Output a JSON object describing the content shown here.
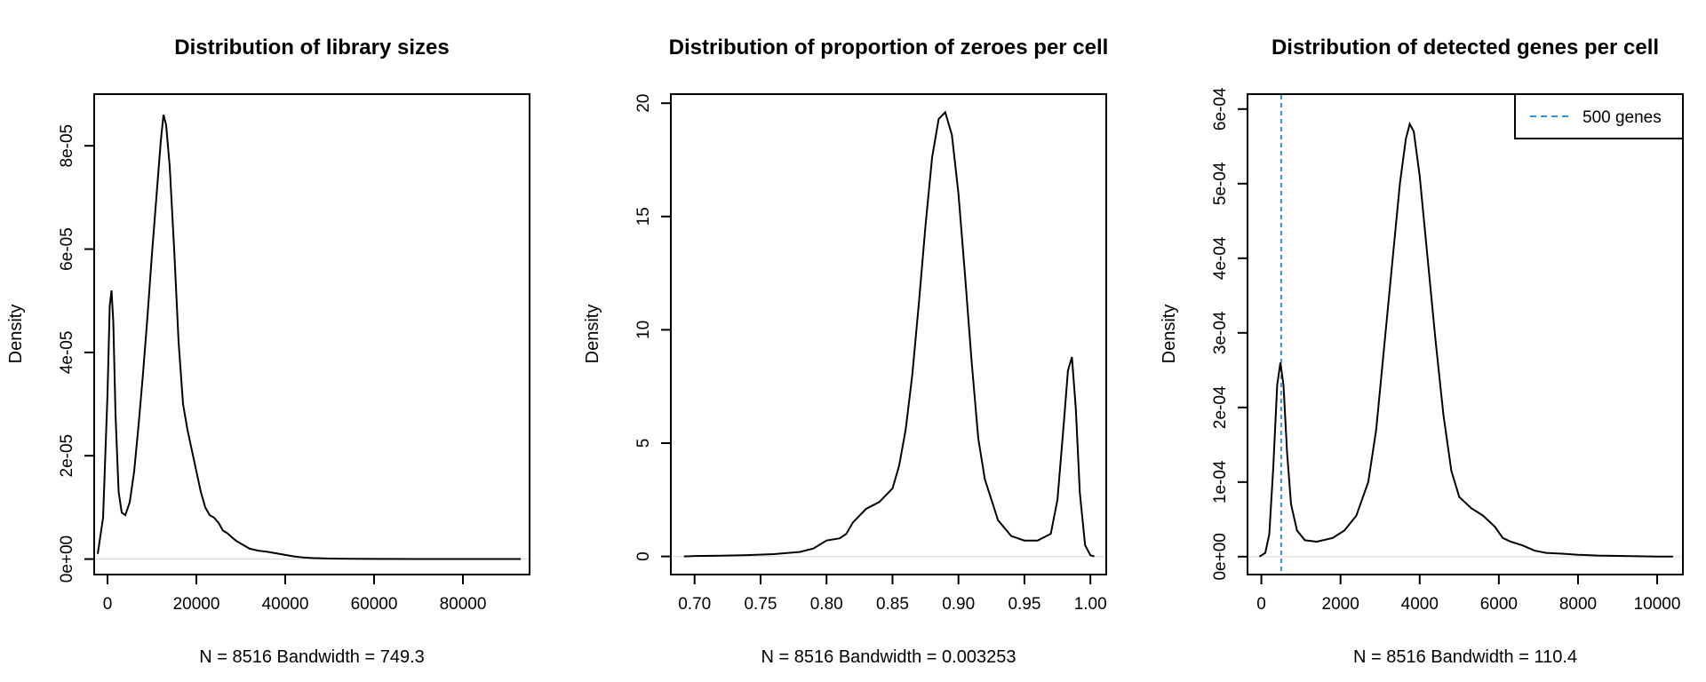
{
  "chart_data": [
    {
      "type": "line",
      "title": "Distribution of library sizes",
      "xlabel": "N = 8516   Bandwidth = 749.3",
      "ylabel": "Density",
      "xlim": [
        -3000,
        95000
      ],
      "ylim": [
        -3e-06,
        9e-05
      ],
      "xticks": [
        0,
        20000,
        40000,
        60000,
        80000
      ],
      "xtick_labels": [
        "0",
        "20000",
        "40000",
        "60000",
        "80000"
      ],
      "yticks": [
        0,
        2e-05,
        4e-05,
        6e-05,
        8e-05
      ],
      "ytick_labels": [
        "0e+00",
        "2e-05",
        "4e-05",
        "6e-05",
        "8e-05"
      ],
      "series": [
        {
          "name": "density",
          "color": "#000000",
          "x": [
            -2200,
            -1000,
            0,
            500,
            900,
            1300,
            1800,
            2500,
            3200,
            4000,
            5000,
            6000,
            7000,
            8000,
            9000,
            10000,
            11000,
            12000,
            12600,
            13200,
            14000,
            15000,
            16000,
            17000,
            18000,
            19000,
            20000,
            21000,
            22000,
            23000,
            24000,
            25000,
            26000,
            27000,
            28000,
            29000,
            30000,
            32000,
            34000,
            36000,
            38000,
            40000,
            42000,
            44000,
            46000,
            50000,
            55000,
            60000,
            70000,
            80000,
            93000
          ],
          "y": [
            1e-06,
            8e-06,
            3.2e-05,
            4.9e-05,
            5.2e-05,
            4.6e-05,
            2.8e-05,
            1.3e-05,
            9e-06,
            8.5e-06,
            1.1e-05,
            1.7e-05,
            2.6e-05,
            3.6e-05,
            4.7e-05,
            5.9e-05,
            7e-05,
            8.1e-05,
            8.6e-05,
            8.4e-05,
            7.6e-05,
            6e-05,
            4.2e-05,
            3e-05,
            2.5e-05,
            2.1e-05,
            1.7e-05,
            1.3e-05,
            1e-05,
            8.5e-06,
            8e-06,
            7e-06,
            5.5e-06,
            5e-06,
            4.2e-06,
            3.5e-06,
            3e-06,
            2e-06,
            1.6e-06,
            1.4e-06,
            1.1e-06,
            8e-07,
            5e-07,
            3e-07,
            2e-07,
            1e-07,
            5e-08,
            2e-08,
            1e-08,
            0,
            0
          ]
        }
      ]
    },
    {
      "type": "line",
      "title": "Distribution of proportion of zeroes per cell",
      "xlabel": "N = 8516   Bandwidth = 0.003253",
      "ylabel": "Density",
      "xlim": [
        0.682,
        1.012
      ],
      "ylim": [
        -0.8,
        20.4
      ],
      "xticks": [
        0.7,
        0.75,
        0.8,
        0.85,
        0.9,
        0.95,
        1.0
      ],
      "xtick_labels": [
        "0.70",
        "0.75",
        "0.80",
        "0.85",
        "0.90",
        "0.95",
        "1.00"
      ],
      "yticks": [
        0,
        5,
        10,
        15,
        20
      ],
      "ytick_labels": [
        "0",
        "5",
        "10",
        "15",
        "20"
      ],
      "series": [
        {
          "name": "density",
          "color": "#000000",
          "x": [
            0.692,
            0.7,
            0.72,
            0.74,
            0.76,
            0.78,
            0.79,
            0.8,
            0.81,
            0.815,
            0.82,
            0.83,
            0.84,
            0.85,
            0.855,
            0.86,
            0.865,
            0.87,
            0.875,
            0.88,
            0.885,
            0.89,
            0.895,
            0.9,
            0.905,
            0.91,
            0.915,
            0.92,
            0.93,
            0.94,
            0.95,
            0.96,
            0.97,
            0.975,
            0.98,
            0.983,
            0.986,
            0.989,
            0.992,
            0.996,
            1.0,
            1.003
          ],
          "y": [
            0,
            0.02,
            0.03,
            0.06,
            0.1,
            0.2,
            0.35,
            0.7,
            0.8,
            1.0,
            1.5,
            2.1,
            2.4,
            3.0,
            4.0,
            5.6,
            8.0,
            11.2,
            14.6,
            17.6,
            19.3,
            19.6,
            18.6,
            16.0,
            12.4,
            8.6,
            5.2,
            3.4,
            1.6,
            0.9,
            0.7,
            0.7,
            1.0,
            2.5,
            6.0,
            8.2,
            8.8,
            6.5,
            2.8,
            0.5,
            0.05,
            0
          ]
        }
      ]
    },
    {
      "type": "line",
      "title": "Distribution of detected genes per cell",
      "xlabel": "N = 8516   Bandwidth = 110.4",
      "ylabel": "Density",
      "xlim": [
        -350,
        10650
      ],
      "ylim": [
        -2.4e-05,
        0.00062
      ],
      "xticks": [
        0,
        2000,
        4000,
        6000,
        8000,
        10000
      ],
      "xtick_labels": [
        "0",
        "2000",
        "4000",
        "6000",
        "8000",
        "10000"
      ],
      "yticks": [
        0,
        0.0001,
        0.0002,
        0.0003,
        0.0004,
        0.0005,
        0.0006
      ],
      "ytick_labels": [
        "0e+00",
        "1e-04",
        "2e-04",
        "3e-04",
        "4e-04",
        "5e-04",
        "6e-04"
      ],
      "vline": {
        "x": 500,
        "label": "500 genes",
        "color": "#3A8FDB"
      },
      "legend_position": "top-right",
      "series": [
        {
          "name": "density",
          "color": "#000000",
          "x": [
            -50,
            100,
            200,
            300,
            400,
            480,
            560,
            650,
            750,
            900,
            1100,
            1400,
            1800,
            2100,
            2400,
            2700,
            2900,
            3100,
            3300,
            3500,
            3650,
            3750,
            3850,
            4000,
            4200,
            4400,
            4600,
            4800,
            5000,
            5300,
            5600,
            5900,
            6100,
            6300,
            6600,
            6900,
            7200,
            7600,
            8000,
            8500,
            9000,
            9500,
            10000,
            10400
          ],
          "y": [
            0,
            5e-06,
            3e-05,
            0.00012,
            0.00023,
            0.00026,
            0.00023,
            0.00014,
            7e-05,
            3.5e-05,
            2.2e-05,
            2e-05,
            2.5e-05,
            3.5e-05,
            5.5e-05,
            0.0001,
            0.00017,
            0.00028,
            0.00039,
            0.0005,
            0.00056,
            0.00058,
            0.00057,
            0.00051,
            0.0004,
            0.00029,
            0.00019,
            0.000115,
            8e-05,
            6.5e-05,
            5.5e-05,
            4e-05,
            2.5e-05,
            2e-05,
            1.5e-05,
            8e-06,
            5e-06,
            4e-06,
            2.5e-06,
            1.5e-06,
            1e-06,
            5e-07,
            2e-07,
            0
          ]
        }
      ]
    }
  ]
}
